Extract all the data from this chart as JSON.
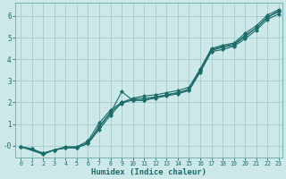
{
  "xlabel": "Humidex (Indice chaleur)",
  "bg_color": "#cce8e8",
  "grid_color": "#aacfcf",
  "line_color": "#1a6b6b",
  "xlim": [
    -0.5,
    23.3
  ],
  "ylim": [
    -0.55,
    6.6
  ],
  "xticks": [
    0,
    1,
    2,
    3,
    4,
    5,
    6,
    7,
    8,
    9,
    10,
    11,
    12,
    13,
    14,
    15,
    16,
    17,
    18,
    19,
    20,
    21,
    22,
    23
  ],
  "ytick_vals": [
    0,
    1,
    2,
    3,
    4,
    5,
    6
  ],
  "ytick_labels": [
    "-0",
    "1",
    "2",
    "3",
    "4",
    "5",
    "6"
  ],
  "line1_x": [
    0,
    1,
    2,
    3,
    4,
    5,
    6,
    7,
    8,
    9,
    10,
    11,
    12,
    13,
    14,
    15,
    16,
    17,
    18,
    19,
    20,
    21,
    22,
    23
  ],
  "line1_y": [
    -0.05,
    -0.15,
    -0.35,
    -0.2,
    -0.1,
    -0.1,
    0.15,
    0.85,
    1.5,
    2.5,
    2.1,
    2.1,
    2.25,
    2.35,
    2.45,
    2.6,
    3.45,
    4.4,
    4.55,
    4.65,
    5.05,
    5.45,
    5.95,
    6.25
  ],
  "line2_x": [
    0,
    1,
    2,
    3,
    4,
    5,
    6,
    7,
    8,
    9,
    10,
    11,
    12,
    13,
    14,
    15,
    16,
    17,
    18,
    19,
    20,
    21,
    22,
    23
  ],
  "line2_y": [
    -0.05,
    -0.15,
    -0.4,
    -0.2,
    -0.1,
    -0.1,
    0.1,
    0.75,
    1.4,
    2.0,
    2.1,
    2.1,
    2.2,
    2.3,
    2.4,
    2.55,
    3.4,
    4.35,
    4.45,
    4.6,
    4.95,
    5.35,
    5.85,
    6.1
  ],
  "line3_x": [
    0,
    2,
    3,
    4,
    5,
    6,
    7,
    8,
    9,
    10,
    11,
    12,
    13,
    14,
    15,
    16,
    17,
    18,
    19,
    20,
    21,
    22,
    23
  ],
  "line3_y": [
    -0.05,
    -0.4,
    -0.2,
    -0.1,
    -0.1,
    0.12,
    0.9,
    1.55,
    1.95,
    2.15,
    2.2,
    2.25,
    2.35,
    2.45,
    2.6,
    3.5,
    4.45,
    4.6,
    4.7,
    5.1,
    5.45,
    5.95,
    6.2
  ],
  "line4_x": [
    0,
    2,
    3,
    4,
    5,
    6,
    7,
    8,
    9,
    10,
    11,
    12,
    13,
    14,
    15,
    16,
    17,
    18,
    19,
    20,
    21,
    22,
    23
  ],
  "line4_y": [
    -0.05,
    -0.35,
    -0.2,
    -0.05,
    -0.05,
    0.22,
    1.05,
    1.65,
    2.0,
    2.2,
    2.3,
    2.35,
    2.45,
    2.55,
    2.7,
    3.55,
    4.5,
    4.65,
    4.75,
    5.2,
    5.55,
    6.05,
    6.3
  ]
}
